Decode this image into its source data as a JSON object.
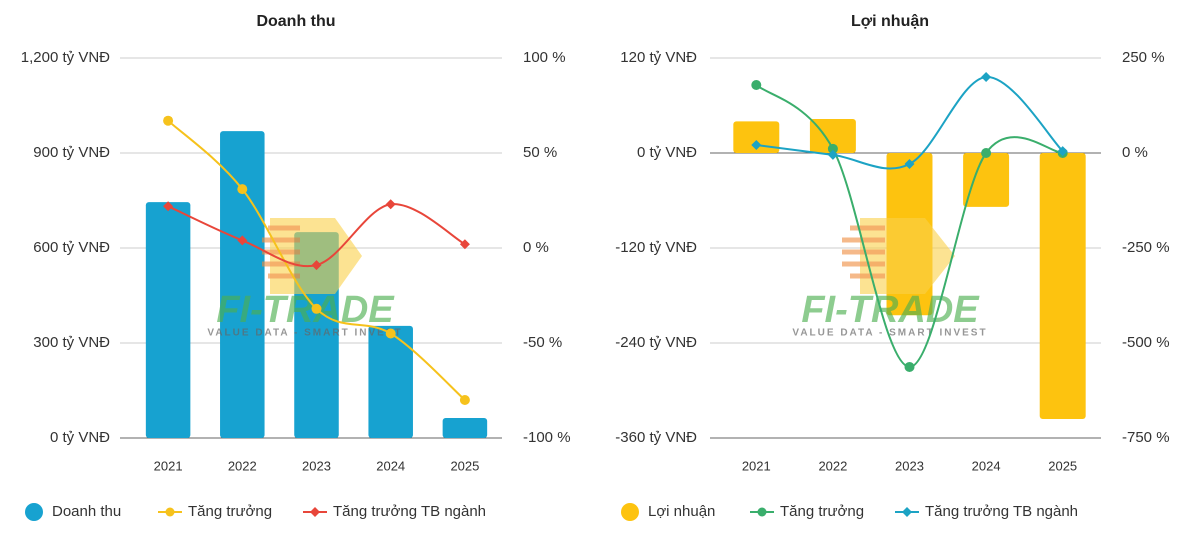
{
  "chart_data": [
    {
      "type": "combo",
      "title": "Doanh thu",
      "categories": [
        "2021",
        "2022",
        "2023",
        "2024",
        "2025"
      ],
      "ylim": [
        0,
        1200
      ],
      "yticks": [
        {
          "value": 0,
          "label": "0 tỷ VNĐ"
        },
        {
          "value": 300,
          "label": "300 tỷ VNĐ"
        },
        {
          "value": 600,
          "label": "600 tỷ VNĐ"
        },
        {
          "value": 900,
          "label": "900 tỷ VNĐ"
        },
        {
          "value": 1200,
          "label": "1,200 tỷ VNĐ"
        }
      ],
      "y2lim": [
        -100,
        100
      ],
      "y2ticks": [
        {
          "value": -100,
          "label": "-100 %"
        },
        {
          "value": -50,
          "label": "-50 %"
        },
        {
          "value": 0,
          "label": "0 %"
        },
        {
          "value": 50,
          "label": "50 %"
        },
        {
          "value": 100,
          "label": "100 %"
        }
      ],
      "grid": true,
      "series": [
        {
          "name": "Doanh thu",
          "type": "bar",
          "color": "#17a2d0",
          "values": [
            745,
            969,
            650,
            354,
            63
          ]
        },
        {
          "name": "Tăng trưởng",
          "type": "line",
          "marker": "circle",
          "axis": "y2",
          "color": "#f6c21c",
          "values": [
            67,
            31,
            -32,
            -45,
            -80
          ]
        },
        {
          "name": "Tăng trưởng TB ngành",
          "type": "line",
          "marker": "diamond",
          "axis": "y2",
          "color": "#e8463a",
          "values": [
            22,
            4,
            -9,
            23,
            2
          ]
        }
      ]
    },
    {
      "type": "combo",
      "title": "Lợi nhuận",
      "categories": [
        "2021",
        "2022",
        "2023",
        "2024",
        "2025"
      ],
      "ylim": [
        -360,
        120
      ],
      "yticks": [
        {
          "value": -360,
          "label": "-360 tỷ VNĐ"
        },
        {
          "value": -240,
          "label": "-240 tỷ VNĐ"
        },
        {
          "value": -120,
          "label": "-120 tỷ VNĐ"
        },
        {
          "value": 0,
          "label": "0 tỷ VNĐ"
        },
        {
          "value": 120,
          "label": "120 tỷ VNĐ"
        }
      ],
      "y2lim": [
        -750,
        250
      ],
      "y2ticks": [
        {
          "value": -750,
          "label": "-750 %"
        },
        {
          "value": -500,
          "label": "-500 %"
        },
        {
          "value": -250,
          "label": "-250 %"
        },
        {
          "value": 0,
          "label": "0 %"
        },
        {
          "value": 250,
          "label": "250 %"
        }
      ],
      "grid": true,
      "series": [
        {
          "name": "Lợi nhuận",
          "type": "bar",
          "color": "#fdc30f",
          "values": [
            40,
            43,
            -205,
            -68,
            -336
          ]
        },
        {
          "name": "Tăng trưởng",
          "type": "line",
          "marker": "circle",
          "axis": "y2",
          "color": "#3aae6c",
          "values": [
            179,
            11,
            -563,
            0,
            0
          ]
        },
        {
          "name": "Tăng trưởng TB ngành",
          "type": "line",
          "marker": "diamond",
          "axis": "y2",
          "color": "#1ca3c4",
          "values": [
            21,
            -5,
            -29,
            200,
            5
          ]
        }
      ]
    }
  ],
  "watermark": {
    "brand": "FI-TRADE",
    "tagline": "VALUE DATA - SMART INVEST"
  }
}
